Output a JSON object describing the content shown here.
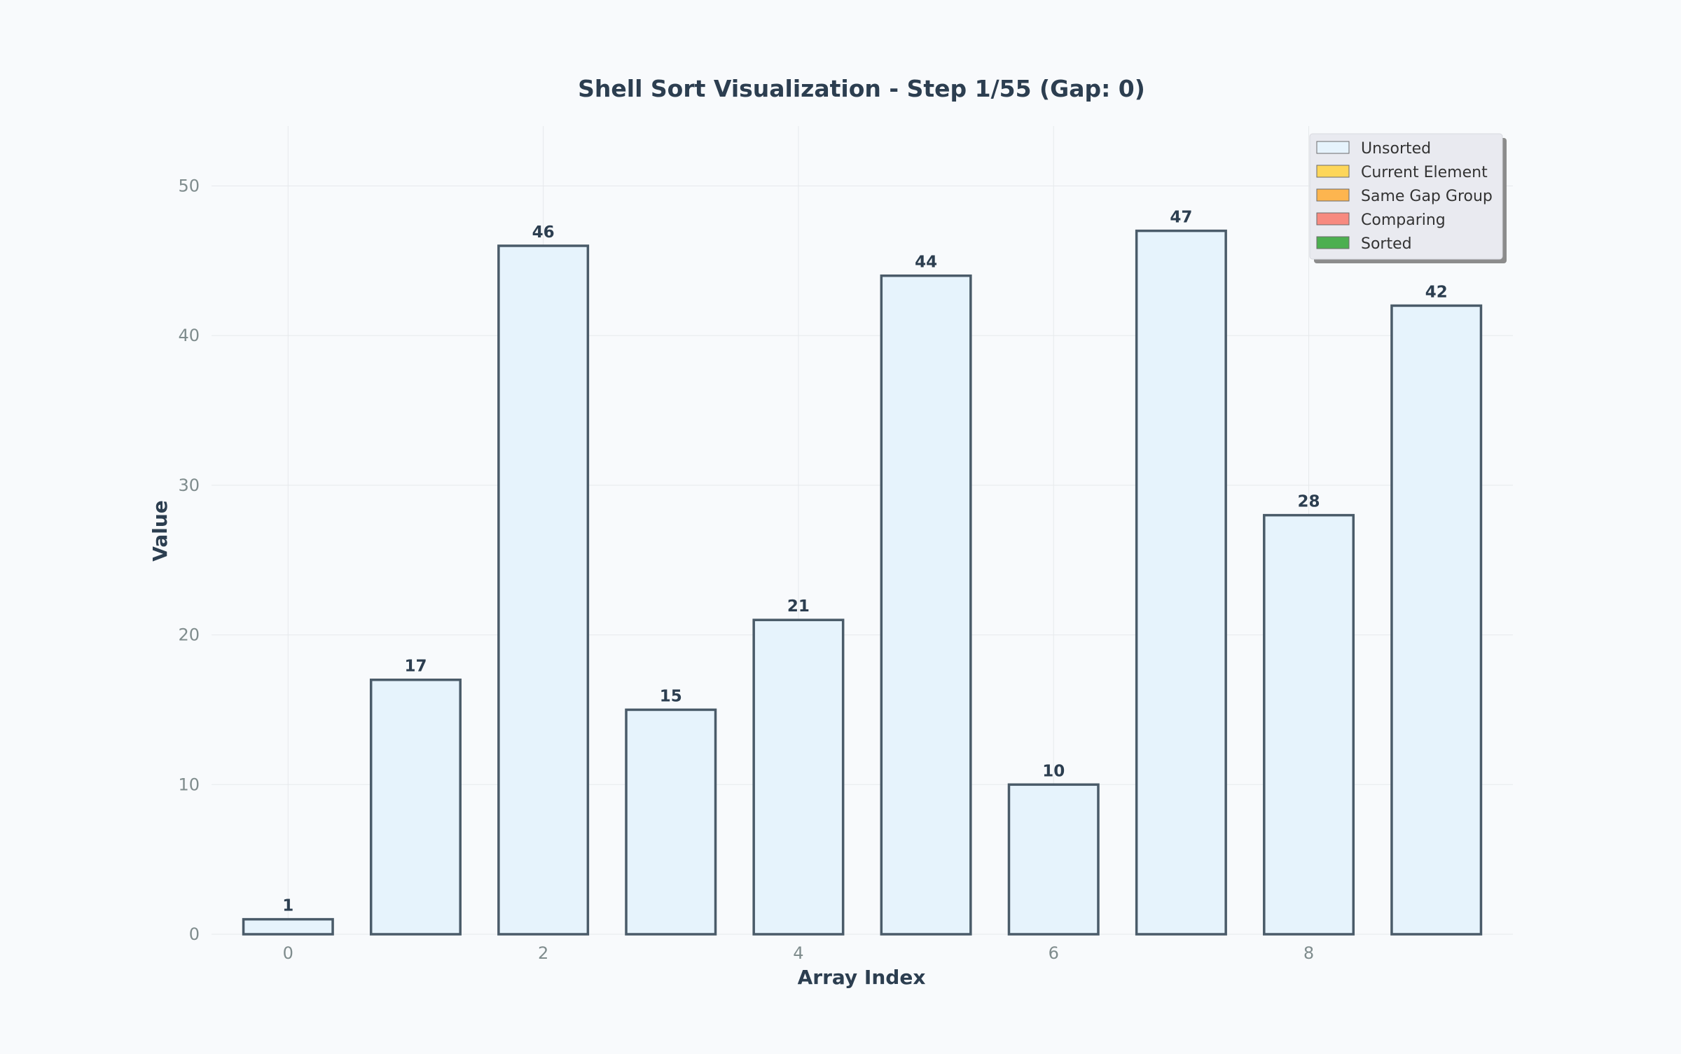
{
  "chart_data": {
    "type": "bar",
    "title": "Shell Sort Visualization - Step 1/55 (Gap: 0)",
    "xlabel": "Array Index",
    "ylabel": "Value",
    "categories": [
      0,
      1,
      2,
      3,
      4,
      5,
      6,
      7,
      8,
      9
    ],
    "values": [
      1,
      17,
      46,
      15,
      21,
      44,
      10,
      47,
      28,
      42
    ],
    "data_labels": [
      "1",
      "17",
      "46",
      "15",
      "21",
      "44",
      "10",
      "47",
      "28",
      "42"
    ],
    "xlim": [
      -0.6,
      9.6
    ],
    "ylim": [
      0,
      54
    ],
    "xticks": [
      0,
      2,
      4,
      6,
      8
    ],
    "yticks": [
      0,
      10,
      20,
      30,
      40,
      50
    ],
    "grid": true,
    "legend_position": "top-right",
    "legend": [
      {
        "label": "Unsorted",
        "color": "#e6f3fc"
      },
      {
        "label": "Current Element",
        "color": "#fdd65a"
      },
      {
        "label": "Same Gap Group",
        "color": "#fdb54f"
      },
      {
        "label": "Comparing",
        "color": "#f78a80"
      },
      {
        "label": "Sorted",
        "color": "#4caf50"
      }
    ],
    "bar_fill": "#e6f3fc",
    "bar_edge": "#4a5b69",
    "colors": {
      "background": "#f8fafc",
      "text_dark": "#2c3e50",
      "tick_text": "#7f8c8d",
      "grid": "#e6e9ec"
    }
  }
}
